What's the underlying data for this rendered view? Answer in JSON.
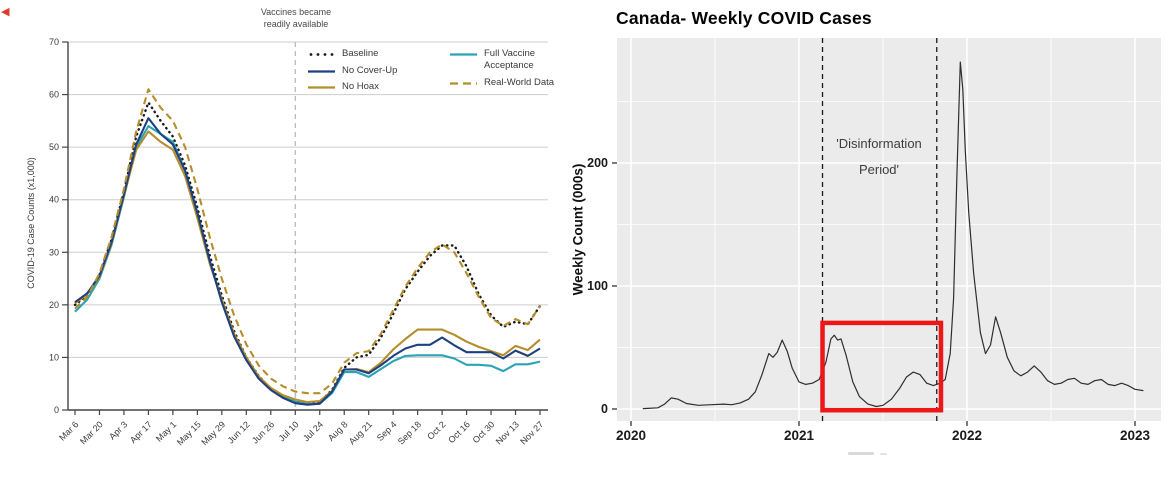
{
  "artifacts": {
    "red_arrow_glyph": "◀"
  },
  "chart_data": [
    {
      "type": "line",
      "title": "",
      "ylabel": "COVID-19 Case Counts (x1,000)",
      "annotation_line1": "Vaccines became",
      "annotation_line2": "readily available",
      "ylim": [
        0,
        70
      ],
      "yticks": [
        0,
        10,
        20,
        30,
        40,
        50,
        60,
        70
      ],
      "x_unit": "week",
      "ticks_every_n_points": 2,
      "x_tick_labels": [
        "Mar 6",
        "Mar 20",
        "Apr 3",
        "Apr 17",
        "May 1",
        "May 15",
        "May 29",
        "Jun 12",
        "Jun 26",
        "Jul 10",
        "Jul 24",
        "Aug 8",
        "Aug 21",
        "Sep 4",
        "Sep 18",
        "Oct 2",
        "Oct 16",
        "Oct 30",
        "Nov 13",
        "Nov 27"
      ],
      "vline_label": "Jul 10",
      "grid": "horizontal-gray",
      "legend_position": "top-inside",
      "series": [
        {
          "name": "Baseline",
          "color": "#1a1a1a",
          "dash": "dotted",
          "values": [
            20,
            21.8,
            25.7,
            32.5,
            41.5,
            52,
            58.5,
            55,
            52,
            46.5,
            38.5,
            29.5,
            21.8,
            15,
            10,
            6.5,
            4,
            2.6,
            1.7,
            1.2,
            1.5,
            3.8,
            8,
            10,
            10.5,
            13.8,
            18.3,
            23,
            26.3,
            29.3,
            31.3,
            31.3,
            27.3,
            22,
            18,
            15.8,
            16.8,
            16.3,
            19.8
          ]
        },
        {
          "name": "No Cover-Up",
          "color": "#1f4080",
          "dash": "solid",
          "values": [
            20.5,
            22.2,
            25.5,
            32,
            41,
            50.5,
            55.5,
            52.5,
            50.5,
            45.5,
            37.5,
            28.5,
            20.5,
            14,
            9.5,
            6,
            3.8,
            2.3,
            1.3,
            1,
            1.2,
            3.5,
            7.7,
            7.7,
            7,
            8.5,
            10.3,
            11.7,
            12.4,
            12.4,
            13.8,
            12.3,
            11,
            11,
            11,
            9.8,
            11.3,
            10.3,
            11.7
          ]
        },
        {
          "name": "No Hoax",
          "color": "#b58d2a",
          "dash": "solid",
          "values": [
            20.3,
            22,
            25.3,
            31.8,
            40.8,
            49.5,
            53,
            51,
            49.5,
            44.5,
            36.5,
            28,
            21,
            14.5,
            10,
            6.4,
            4.2,
            2.8,
            2,
            1.5,
            1.7,
            3.6,
            7.7,
            7.8,
            7.2,
            9,
            11.5,
            13.5,
            15.3,
            15.3,
            15.3,
            14.3,
            13,
            12,
            11.2,
            10.4,
            12.2,
            11.4,
            13.4
          ]
        },
        {
          "name": "Full Vaccine Acceptance",
          "color": "#29a4b5",
          "dash": "solid",
          "values": [
            18.7,
            21,
            25,
            31.5,
            40.5,
            50,
            54,
            52.5,
            51,
            45.5,
            37.5,
            28,
            21,
            14.3,
            9.7,
            6.1,
            3.9,
            2.5,
            1.6,
            1.1,
            1.2,
            3.2,
            7.2,
            7.2,
            6.3,
            7.8,
            9.3,
            10.3,
            10.4,
            10.4,
            10.4,
            9.8,
            8.6,
            8.6,
            8.4,
            7.4,
            8.7,
            8.7,
            9.2
          ]
        },
        {
          "name": "Real-World Data",
          "color": "#b58d2a",
          "dash": "dashed",
          "values": [
            19.3,
            21.5,
            26,
            33,
            42,
            53,
            61,
            57.5,
            55,
            50,
            42,
            33,
            25,
            18,
            12.5,
            8.5,
            6,
            4.5,
            3.5,
            3.2,
            3.2,
            5,
            9,
            10.8,
            11.2,
            14.5,
            19,
            23.5,
            27,
            30,
            31.5,
            30,
            26,
            21.5,
            17.5,
            16,
            17.3,
            16.3,
            19.8
          ]
        }
      ]
    },
    {
      "type": "line",
      "title": "Canada- Weekly COVID Cases",
      "ylabel": "Weekly Count (000s)",
      "annotation_line1": "'Disinformation",
      "annotation_line2": "Period'",
      "yticks": [
        0,
        100,
        200
      ],
      "yticks_minor": [
        50,
        150,
        250
      ],
      "xticks": [
        2020,
        2021,
        2022,
        2023
      ],
      "xticks_minor": [
        2020.5,
        2021.5,
        2022.5
      ],
      "ylim": [
        -10,
        300
      ],
      "xlim": [
        2019.92,
        2023.16
      ],
      "grid": "white-on-gray-panel",
      "panel_bg": "#ebebeb",
      "line_color": "#2e2e2e",
      "vlines": [
        2021.14,
        2021.82
      ],
      "highlight_box": {
        "x1": 2021.14,
        "x2": 2021.845,
        "y1": -1,
        "y2": 70,
        "color": "#ee1616"
      },
      "points": [
        [
          2020.07,
          0.3
        ],
        [
          2020.1,
          0.5
        ],
        [
          2020.16,
          1
        ],
        [
          2020.2,
          4
        ],
        [
          2020.24,
          9
        ],
        [
          2020.28,
          8
        ],
        [
          2020.33,
          4.5
        ],
        [
          2020.4,
          3
        ],
        [
          2020.48,
          3.5
        ],
        [
          2020.55,
          4
        ],
        [
          2020.6,
          3.5
        ],
        [
          2020.65,
          5
        ],
        [
          2020.7,
          8
        ],
        [
          2020.74,
          14
        ],
        [
          2020.78,
          28
        ],
        [
          2020.82,
          45
        ],
        [
          2020.845,
          42
        ],
        [
          2020.87,
          46
        ],
        [
          2020.9,
          56
        ],
        [
          2020.93,
          47
        ],
        [
          2020.96,
          33
        ],
        [
          2021.0,
          22
        ],
        [
          2021.04,
          20
        ],
        [
          2021.08,
          21
        ],
        [
          2021.12,
          24
        ],
        [
          2021.16,
          38
        ],
        [
          2021.19,
          57
        ],
        [
          2021.21,
          60
        ],
        [
          2021.23,
          56
        ],
        [
          2021.25,
          57
        ],
        [
          2021.28,
          44
        ],
        [
          2021.32,
          22
        ],
        [
          2021.36,
          10
        ],
        [
          2021.41,
          4
        ],
        [
          2021.46,
          2
        ],
        [
          2021.5,
          3
        ],
        [
          2021.55,
          8
        ],
        [
          2021.6,
          17
        ],
        [
          2021.64,
          26
        ],
        [
          2021.68,
          30
        ],
        [
          2021.72,
          28
        ],
        [
          2021.76,
          21
        ],
        [
          2021.8,
          19
        ],
        [
          2021.84,
          21
        ],
        [
          2021.87,
          24
        ],
        [
          2021.9,
          45
        ],
        [
          2021.92,
          90
        ],
        [
          2021.94,
          190
        ],
        [
          2021.96,
          282
        ],
        [
          2021.975,
          260
        ],
        [
          2021.99,
          210
        ],
        [
          2022.01,
          160
        ],
        [
          2022.04,
          110
        ],
        [
          2022.08,
          62
        ],
        [
          2022.11,
          45
        ],
        [
          2022.14,
          52
        ],
        [
          2022.17,
          75
        ],
        [
          2022.2,
          62
        ],
        [
          2022.24,
          42
        ],
        [
          2022.28,
          31
        ],
        [
          2022.32,
          27
        ],
        [
          2022.36,
          30
        ],
        [
          2022.4,
          35
        ],
        [
          2022.44,
          30
        ],
        [
          2022.48,
          23
        ],
        [
          2022.52,
          20
        ],
        [
          2022.56,
          21
        ],
        [
          2022.6,
          24
        ],
        [
          2022.64,
          25
        ],
        [
          2022.68,
          21
        ],
        [
          2022.72,
          20
        ],
        [
          2022.76,
          23
        ],
        [
          2022.8,
          24
        ],
        [
          2022.84,
          20
        ],
        [
          2022.88,
          19
        ],
        [
          2022.92,
          21
        ],
        [
          2022.96,
          19
        ],
        [
          2023.0,
          16
        ],
        [
          2023.05,
          15
        ]
      ]
    }
  ]
}
